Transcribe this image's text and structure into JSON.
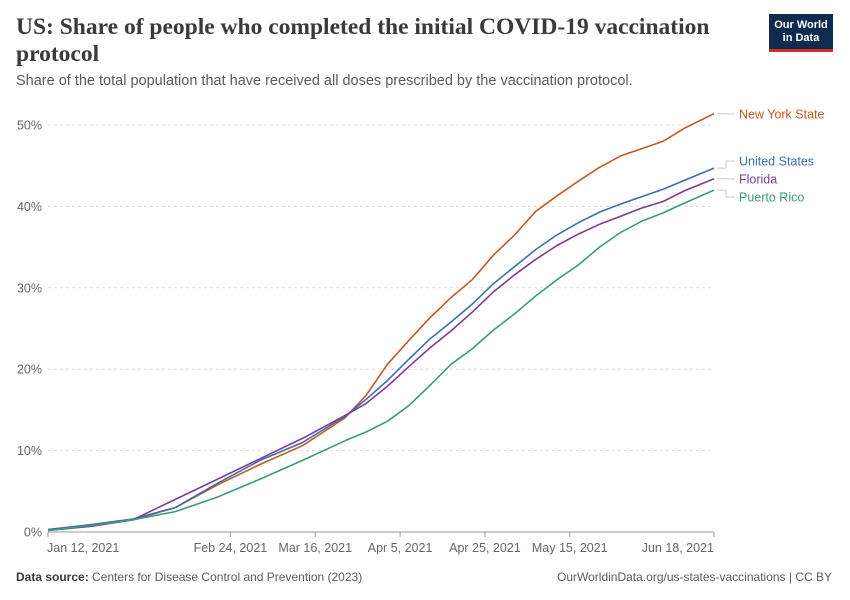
{
  "header": {
    "title": "US: Share of people who completed the initial COVID-19 vaccination protocol",
    "subtitle": "Share of the total population that have received all doses prescribed by the vaccination protocol.",
    "logo_line1": "Our World",
    "logo_line2": "in Data"
  },
  "footer": {
    "source_label": "Data source:",
    "source_text": "Centers for Disease Control and Prevention (2023)",
    "url": "OurWorldinData.org/us-states-vaccinations | CC BY"
  },
  "chart_data": {
    "type": "line",
    "title": "US: Share of people who completed the initial COVID-19 vaccination protocol",
    "subtitle": "Share of the total population that have received all doses prescribed by the vaccination protocol.",
    "ylim": [
      0,
      50
    ],
    "y_ticks": [
      0,
      10,
      20,
      30,
      40,
      50
    ],
    "y_tick_labels": [
      "0%",
      "10%",
      "20%",
      "30%",
      "40%",
      "50%"
    ],
    "x_range": [
      "2021-01-12",
      "2021-06-18"
    ],
    "x_ticks": [
      "2021-01-12",
      "2021-02-24",
      "2021-03-16",
      "2021-04-05",
      "2021-04-25",
      "2021-05-15",
      "2021-06-18"
    ],
    "x_tick_labels": [
      "Jan 12, 2021",
      "Feb 24, 2021",
      "Mar 16, 2021",
      "Apr 5, 2021",
      "Apr 25, 2021",
      "May 15, 2021",
      "Jun 18, 2021"
    ],
    "grid": "horizontal-dashed",
    "legend": "right-end-labels",
    "series": [
      {
        "name": "New York State",
        "color": "#c15b26",
        "x": [
          "2021-01-12",
          "2021-01-22",
          "2021-02-01",
          "2021-02-11",
          "2021-02-21",
          "2021-03-03",
          "2021-03-13",
          "2021-03-23",
          "2021-03-28",
          "2021-04-02",
          "2021-04-07",
          "2021-04-12",
          "2021-04-17",
          "2021-04-22",
          "2021-04-27",
          "2021-05-02",
          "2021-05-07",
          "2021-05-12",
          "2021-05-17",
          "2021-05-22",
          "2021-05-27",
          "2021-06-01",
          "2021-06-06",
          "2021-06-11",
          "2021-06-18"
        ],
        "y": [
          0.3,
          0.7,
          1.5,
          3.0,
          5.8,
          8.3,
          10.6,
          14.0,
          16.8,
          20.6,
          23.5,
          26.3,
          28.8,
          31.0,
          34.0,
          36.5,
          39.4,
          41.3,
          43.1,
          44.8,
          46.2,
          47.1,
          48.0,
          49.6,
          51.4
        ]
      },
      {
        "name": "United States",
        "color": "#3c6db3",
        "x": [
          "2021-01-12",
          "2021-01-22",
          "2021-02-01",
          "2021-02-11",
          "2021-02-21",
          "2021-03-03",
          "2021-03-13",
          "2021-03-23",
          "2021-03-28",
          "2021-04-02",
          "2021-04-07",
          "2021-04-12",
          "2021-04-17",
          "2021-04-22",
          "2021-04-27",
          "2021-05-02",
          "2021-05-07",
          "2021-05-12",
          "2021-05-17",
          "2021-05-22",
          "2021-05-27",
          "2021-06-01",
          "2021-06-06",
          "2021-06-11",
          "2021-06-18"
        ],
        "y": [
          0.3,
          0.9,
          1.6,
          3.0,
          6.0,
          8.8,
          11.0,
          14.2,
          16.3,
          18.6,
          21.2,
          23.7,
          25.8,
          28.0,
          30.5,
          32.6,
          34.7,
          36.5,
          38.0,
          39.3,
          40.3,
          41.2,
          42.1,
          43.2,
          44.7
        ]
      },
      {
        "name": "Florida",
        "color": "#7b3f91",
        "x": [
          "2021-01-12",
          "2021-01-22",
          "2021-02-01",
          "2021-02-11",
          "2021-02-21",
          "2021-03-03",
          "2021-03-13",
          "2021-03-23",
          "2021-03-28",
          "2021-04-02",
          "2021-04-07",
          "2021-04-12",
          "2021-04-17",
          "2021-04-22",
          "2021-04-27",
          "2021-05-02",
          "2021-05-07",
          "2021-05-12",
          "2021-05-17",
          "2021-05-22",
          "2021-05-27",
          "2021-06-01",
          "2021-06-06",
          "2021-06-11",
          "2021-06-18"
        ],
        "y": [
          0.2,
          0.7,
          1.5,
          4.0,
          6.5,
          9.0,
          11.5,
          14.3,
          15.8,
          17.9,
          20.3,
          22.6,
          24.7,
          27.0,
          29.5,
          31.6,
          33.5,
          35.2,
          36.6,
          37.8,
          38.8,
          39.8,
          40.6,
          41.9,
          43.4
        ]
      },
      {
        "name": "Puerto Rico",
        "color": "#3d9a7a",
        "x": [
          "2021-01-12",
          "2021-01-22",
          "2021-02-01",
          "2021-02-11",
          "2021-02-21",
          "2021-03-03",
          "2021-03-13",
          "2021-03-23",
          "2021-03-28",
          "2021-04-02",
          "2021-04-07",
          "2021-04-12",
          "2021-04-17",
          "2021-04-22",
          "2021-04-27",
          "2021-05-02",
          "2021-05-07",
          "2021-05-12",
          "2021-05-17",
          "2021-05-22",
          "2021-05-27",
          "2021-06-01",
          "2021-06-06",
          "2021-06-11",
          "2021-06-18"
        ],
        "y": [
          0.2,
          0.8,
          1.5,
          2.5,
          4.3,
          6.5,
          8.8,
          11.2,
          12.3,
          13.6,
          15.5,
          18.0,
          20.6,
          22.5,
          24.8,
          26.8,
          29.0,
          31.0,
          32.8,
          35.0,
          36.8,
          38.2,
          39.2,
          40.4,
          42.0
        ]
      }
    ]
  }
}
